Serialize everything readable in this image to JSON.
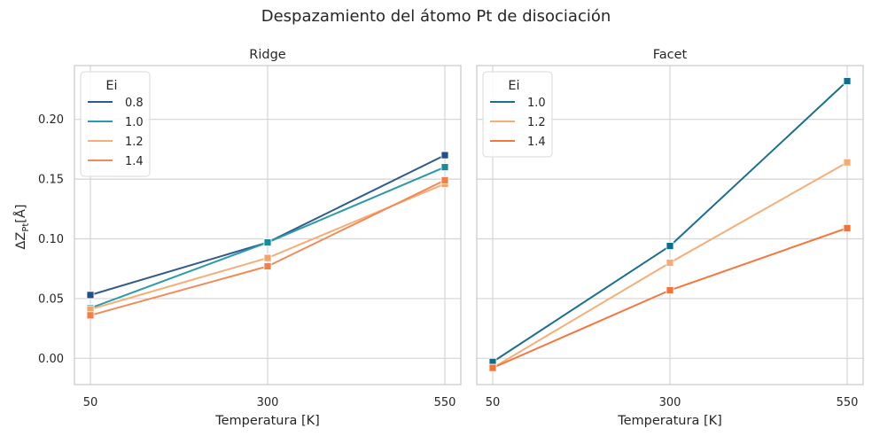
{
  "figure": {
    "suptitle": "Despazamiento del átomo Pt de disociación",
    "ylabel": "ΔZ",
    "ylabel_sub": "Pt",
    "ylabel_unit": "[Å]"
  },
  "chart_data": [
    {
      "type": "line",
      "title": "Ridge",
      "xlabel": "Temperatura [K]",
      "ylabel": "ΔZPt[Å]",
      "x": [
        50,
        300,
        550
      ],
      "xticks": [
        "50",
        "300",
        "550"
      ],
      "ylim": [
        -0.022,
        0.245
      ],
      "yticks": [
        0.0,
        0.05,
        0.1,
        0.15,
        0.2
      ],
      "ytick_labels": [
        "0.00",
        "0.05",
        "0.10",
        "0.15",
        "0.20"
      ],
      "grid": true,
      "legend": {
        "title": "Ei",
        "placement": "top-left"
      },
      "series": [
        {
          "name": "0.8",
          "color": "#2f5b8c",
          "marker": "#23508a",
          "values": [
            0.053,
            0.097,
            0.17
          ]
        },
        {
          "name": "1.0",
          "color": "#2b9aa8",
          "marker": "#178b98",
          "values": [
            0.042,
            0.097,
            0.16
          ]
        },
        {
          "name": "1.2",
          "color": "#f6ae78",
          "marker": "#f3a36c",
          "values": [
            0.041,
            0.084,
            0.146
          ]
        },
        {
          "name": "1.4",
          "color": "#f08a58",
          "marker": "#f07f49",
          "values": [
            0.036,
            0.077,
            0.149
          ]
        }
      ]
    },
    {
      "type": "line",
      "title": "Facet",
      "xlabel": "Temperatura [K]",
      "x": [
        50,
        300,
        550
      ],
      "xticks": [
        "50",
        "300",
        "550"
      ],
      "ylim": [
        -0.022,
        0.245
      ],
      "yticks": [
        0.0,
        0.05,
        0.1,
        0.15,
        0.2
      ],
      "grid": true,
      "legend": {
        "title": "Ei",
        "placement": "top-left"
      },
      "series": [
        {
          "name": "1.0",
          "color": "#1a6f8c",
          "marker": "#0b6e8a",
          "values": [
            -0.003,
            0.094,
            0.232
          ]
        },
        {
          "name": "1.2",
          "color": "#f6ae78",
          "marker": "#f5ab72",
          "values": [
            -0.008,
            0.08,
            0.164
          ]
        },
        {
          "name": "1.4",
          "color": "#f4773e",
          "marker": "#f27238",
          "values": [
            -0.008,
            0.057,
            0.109
          ]
        }
      ]
    }
  ]
}
